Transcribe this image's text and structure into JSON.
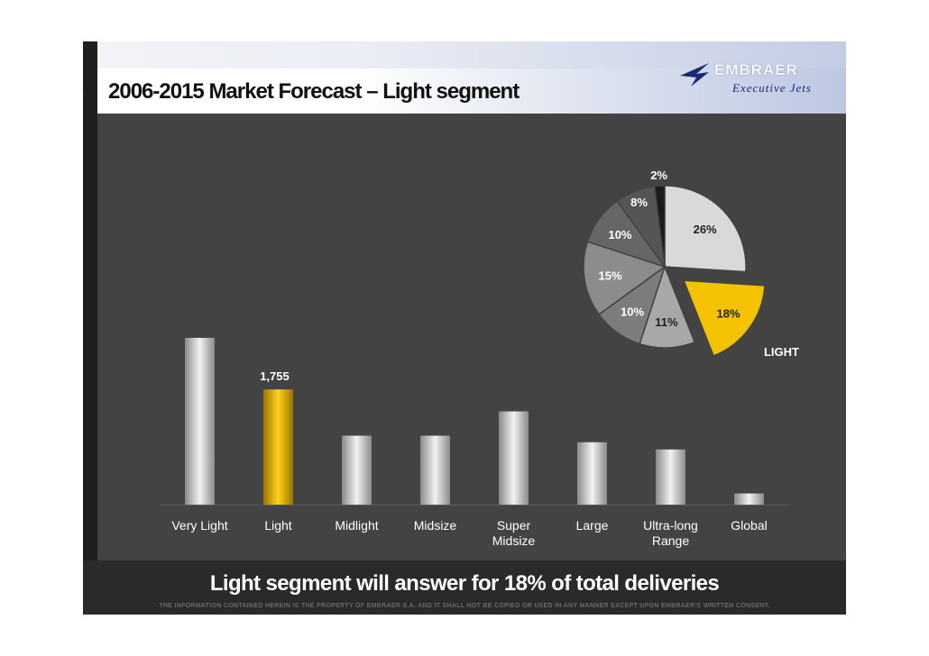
{
  "slide": {
    "title": "2006-2015 Market Forecast – Light segment",
    "logo": {
      "name": "EMBRAER",
      "subtitle": "Executive Jets"
    },
    "conclusion": "Light segment will answer for 18% of total deliveries",
    "disclaimer": "THE INFORMATION CONTAINED HEREIN IS THE PROPERTY OF EMBRAER S.A. AND IT SHALL NOT BE COPIED OR USED IN ANY MANNER  EXCEPT UPON EMBRAER'S WRITTEN CONSENT."
  },
  "colors": {
    "background": "#434343",
    "highlight": "#f5c200",
    "bar": "#d9d9d9",
    "text": "#ffffff"
  },
  "chart_data": [
    {
      "type": "bar",
      "categories": [
        "Very Light",
        "Light",
        "Midlight",
        "Midsize",
        "Super Midsize",
        "Large",
        "Ultra-long Range",
        "Global"
      ],
      "category_lines": [
        [
          "Very Light"
        ],
        [
          "Light"
        ],
        [
          "Midlight"
        ],
        [
          "Midsize"
        ],
        [
          "Super",
          "Midsize"
        ],
        [
          "Large"
        ],
        [
          "Ultra-long",
          "Range"
        ],
        [
          "Global"
        ]
      ],
      "values": [
        2540,
        1755,
        1050,
        1050,
        1420,
        950,
        840,
        170
      ],
      "data_labels": [
        {
          "category": "Light",
          "text": "1,755"
        }
      ],
      "highlight": "Light",
      "ylim": [
        0,
        2800
      ],
      "grid": false,
      "legend": "none"
    },
    {
      "type": "pie",
      "slices": [
        {
          "label": "26%",
          "value": 26,
          "color": "#d9d9d9",
          "label_color": "#222222"
        },
        {
          "label": "18%",
          "value": 18,
          "color": "#f5c200",
          "label_color": "#222222",
          "exploded": true,
          "callout": "LIGHT"
        },
        {
          "label": "11%",
          "value": 11,
          "color": "#a8a8a8",
          "label_color": "#222222"
        },
        {
          "label": "10%",
          "value": 10,
          "color": "#7c7c7c",
          "label_color": "#ffffff"
        },
        {
          "label": "15%",
          "value": 15,
          "color": "#8c8c8c",
          "label_color": "#ffffff"
        },
        {
          "label": "10%",
          "value": 10,
          "color": "#666666",
          "label_color": "#ffffff"
        },
        {
          "label": "8%",
          "value": 8,
          "color": "#555555",
          "label_color": "#ffffff"
        },
        {
          "label": "2%",
          "value": 2,
          "color": "#1a1a1a",
          "label_color": "#ffffff"
        }
      ],
      "start_at": "12 o'clock, clockwise",
      "legend": "none"
    }
  ]
}
